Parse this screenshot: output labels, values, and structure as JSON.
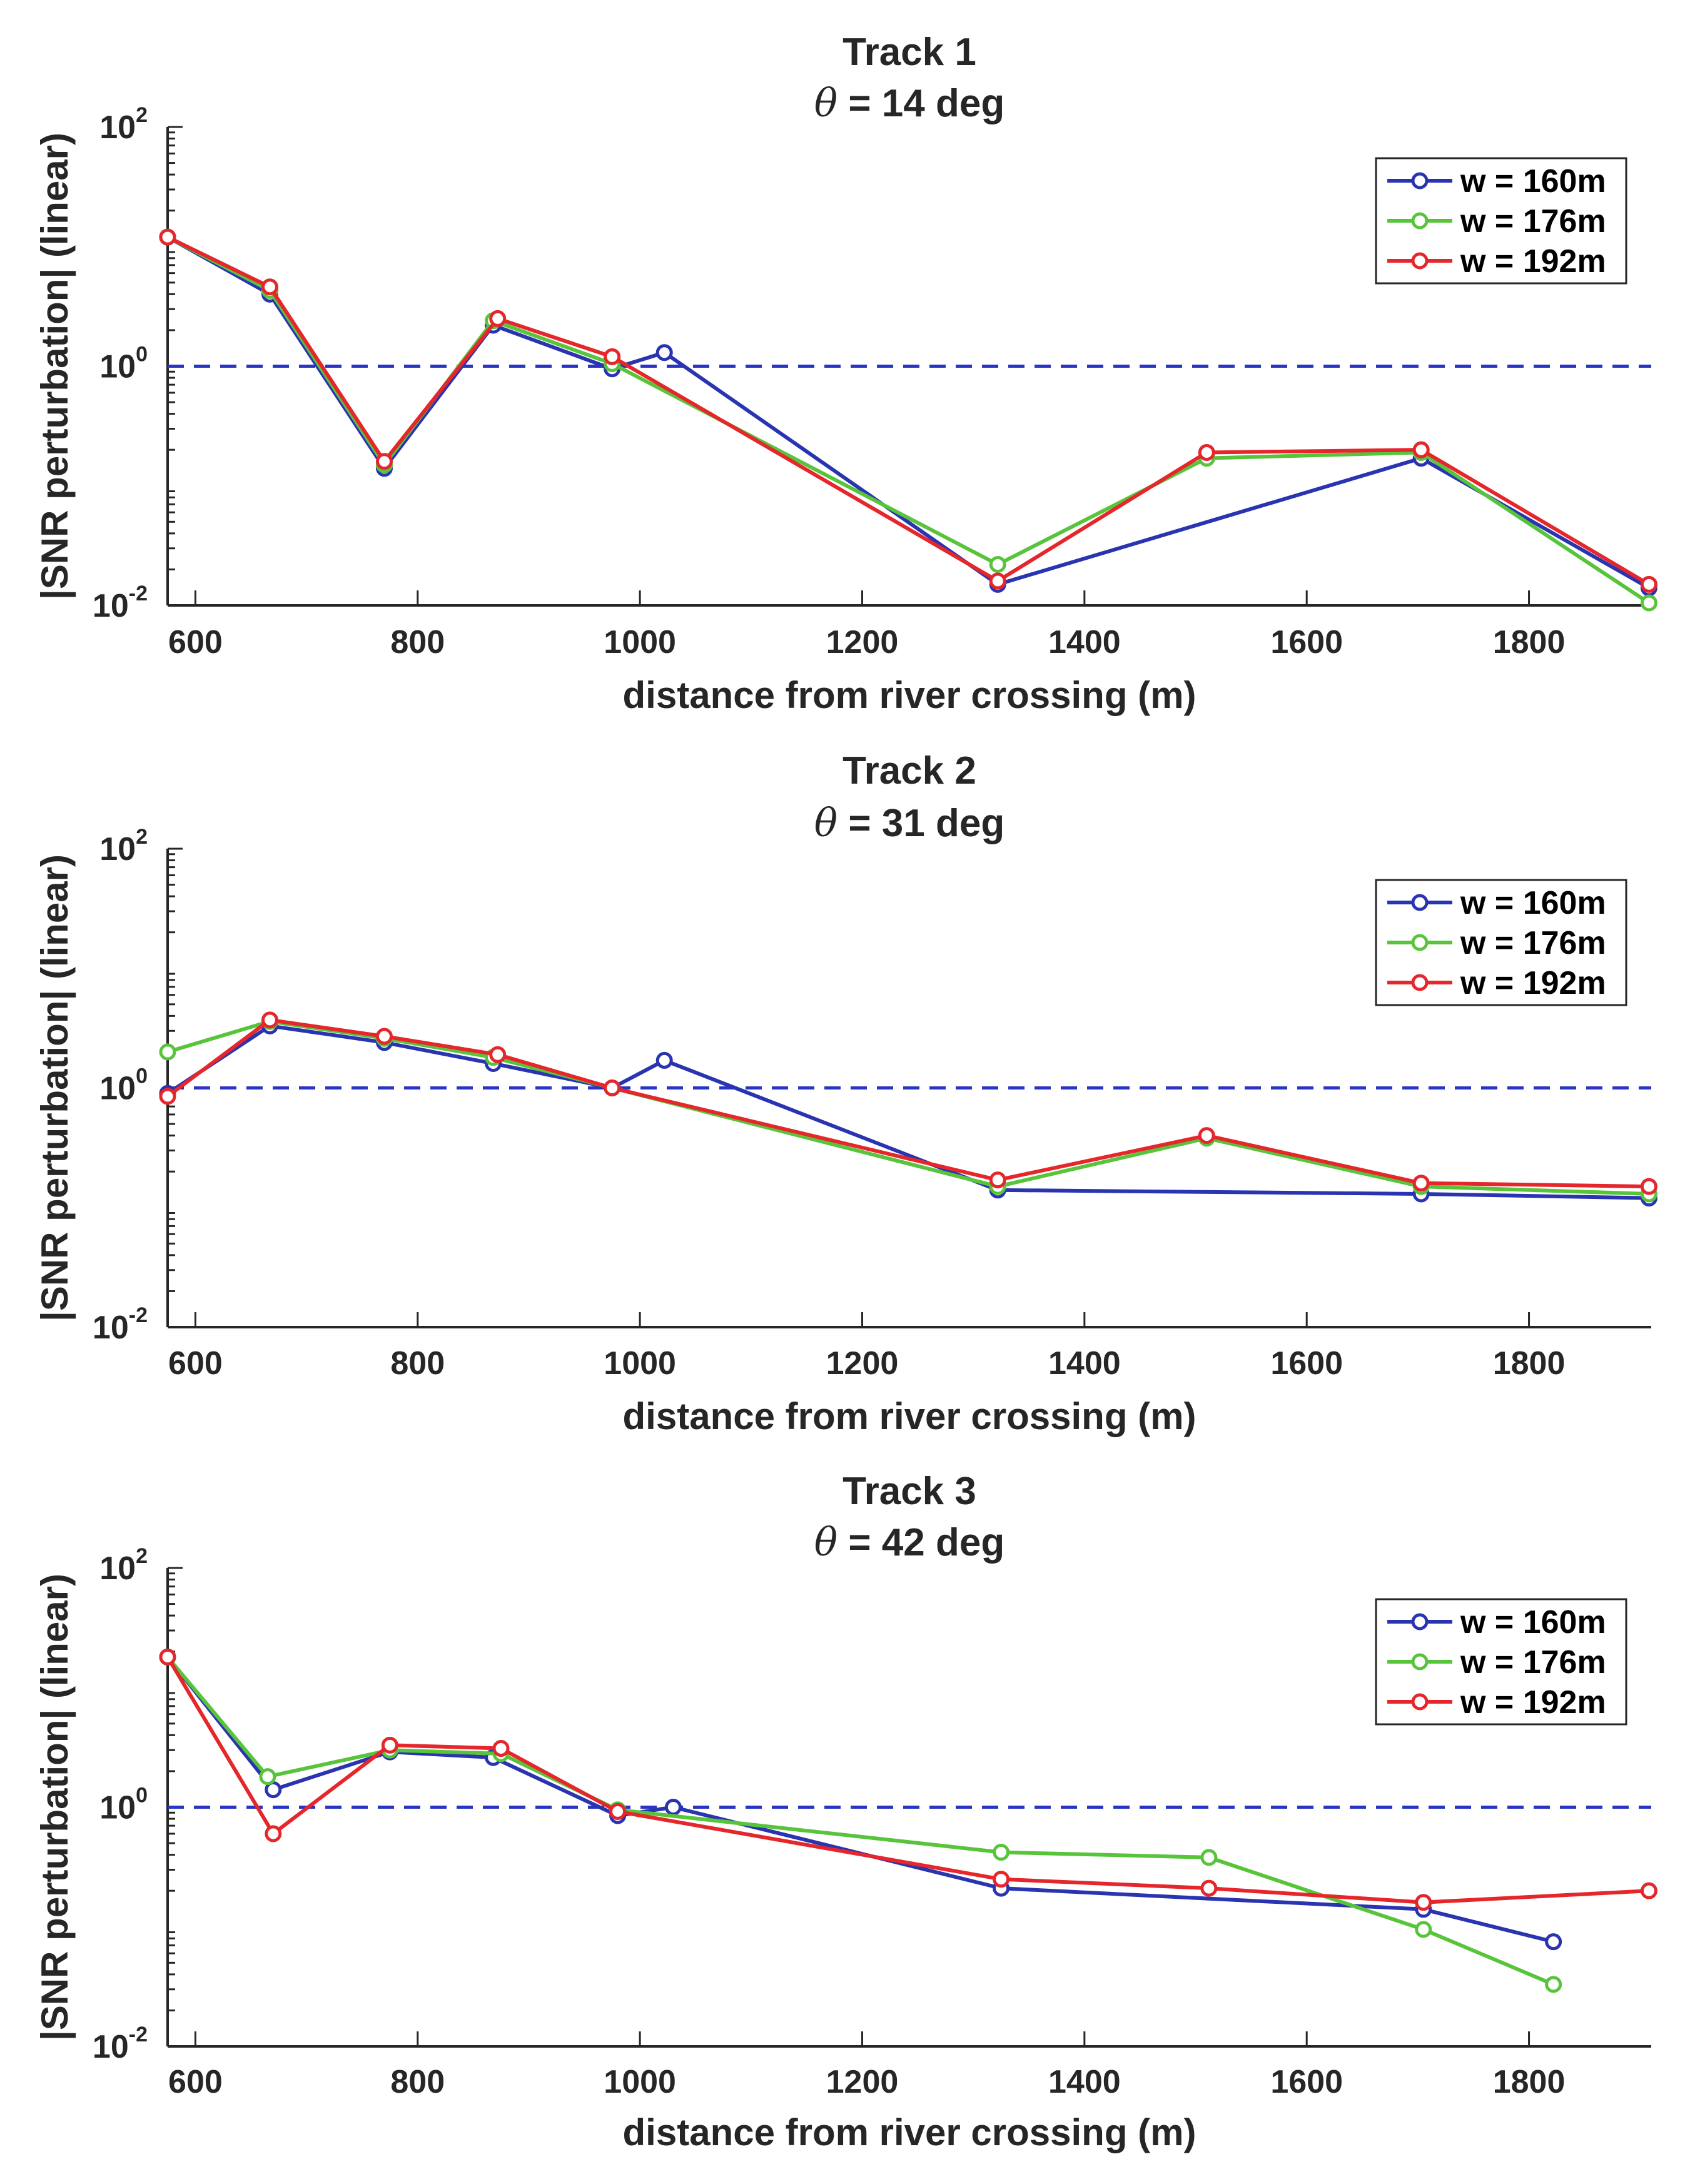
{
  "chart_data": [
    {
      "type": "line",
      "title": "Track 1",
      "subtitle_symbol": "θ",
      "subtitle_rest": " = 14 deg",
      "xlabel": "distance from river crossing (m)",
      "ylabel": "|SNR perturbation| (linear)",
      "xlim": [
        575,
        1910
      ],
      "xticks": [
        600,
        800,
        1000,
        1200,
        1400,
        1600,
        1800
      ],
      "xtick_labels": [
        "600",
        "800",
        "1000",
        "1200",
        "1400",
        "1600",
        "1800"
      ],
      "yscale": "log",
      "ylim": [
        0.01,
        100
      ],
      "yticks": [
        {
          "value": 100,
          "base": "10",
          "exp": "2"
        },
        {
          "value": 1,
          "base": "10",
          "exp": "0"
        },
        {
          "value": 0.01,
          "base": "10",
          "exp": "-2"
        }
      ],
      "reference_line": {
        "y": 1,
        "style": "dashed",
        "color": "#2a34c4"
      },
      "legend_position": "top-right",
      "series": [
        {
          "name": "w = 160m",
          "color": "#2a34b0",
          "marker": "open-circle",
          "x": [
            575,
            667,
            770,
            868,
            975,
            1022,
            1322,
            1703,
            1908
          ],
          "y": [
            12,
            4.0,
            0.14,
            2.2,
            0.95,
            1.3,
            0.015,
            0.17,
            0.014
          ]
        },
        {
          "name": "w = 176m",
          "color": "#58c43c",
          "marker": "open-circle",
          "x": [
            575,
            667,
            770,
            868,
            975,
            1322,
            1510,
            1703,
            1908
          ],
          "y": [
            12,
            4.3,
            0.15,
            2.4,
            1.05,
            0.022,
            0.17,
            0.19,
            0.0105
          ]
        },
        {
          "name": "w = 192m",
          "color": "#e5262a",
          "marker": "open-circle",
          "x": [
            575,
            667,
            770,
            872,
            975,
            1322,
            1510,
            1703,
            1908
          ],
          "y": [
            12,
            4.6,
            0.16,
            2.5,
            1.2,
            0.016,
            0.19,
            0.2,
            0.015
          ]
        }
      ]
    },
    {
      "type": "line",
      "title": "Track 2",
      "subtitle_symbol": "θ",
      "subtitle_rest": " = 31 deg",
      "xlabel": "distance from river crossing (m)",
      "ylabel": "|SNR perturbation| (linear)",
      "xlim": [
        575,
        1910
      ],
      "xticks": [
        600,
        800,
        1000,
        1200,
        1400,
        1600,
        1800
      ],
      "xtick_labels": [
        "600",
        "800",
        "1000",
        "1200",
        "1400",
        "1600",
        "1800"
      ],
      "yscale": "log",
      "ylim": [
        0.01,
        100
      ],
      "yticks": [
        {
          "value": 100,
          "base": "10",
          "exp": "2"
        },
        {
          "value": 1,
          "base": "10",
          "exp": "0"
        },
        {
          "value": 0.01,
          "base": "10",
          "exp": "-2"
        }
      ],
      "reference_line": {
        "y": 1,
        "style": "dashed",
        "color": "#2a34c4"
      },
      "legend_position": "top-right",
      "series": [
        {
          "name": "w = 160m",
          "color": "#2a34b0",
          "marker": "open-circle",
          "x": [
            575,
            667,
            770,
            868,
            975,
            1022,
            1322,
            1703,
            1908
          ],
          "y": [
            0.9,
            3.3,
            2.4,
            1.6,
            1.0,
            1.7,
            0.14,
            0.13,
            0.12
          ]
        },
        {
          "name": "w = 176m",
          "color": "#58c43c",
          "marker": "open-circle",
          "x": [
            575,
            667,
            770,
            868,
            975,
            1322,
            1510,
            1703,
            1908
          ],
          "y": [
            2.0,
            3.6,
            2.6,
            1.8,
            1.0,
            0.15,
            0.38,
            0.15,
            0.13
          ]
        },
        {
          "name": "w = 192m",
          "color": "#e5262a",
          "marker": "open-circle",
          "x": [
            575,
            667,
            770,
            872,
            975,
            1322,
            1510,
            1703,
            1908
          ],
          "y": [
            0.85,
            3.7,
            2.7,
            1.9,
            1.0,
            0.17,
            0.4,
            0.16,
            0.15
          ]
        }
      ]
    },
    {
      "type": "line",
      "title": "Track 3",
      "subtitle_symbol": "θ",
      "subtitle_rest": " = 42 deg",
      "xlabel": "distance from river crossing (m)",
      "ylabel": "|SNR perturbation| (linear)",
      "xlim": [
        575,
        1910
      ],
      "xticks": [
        600,
        800,
        1000,
        1200,
        1400,
        1600,
        1800
      ],
      "xtick_labels": [
        "600",
        "800",
        "1000",
        "1200",
        "1400",
        "1600",
        "1800"
      ],
      "yscale": "log",
      "ylim": [
        0.01,
        100
      ],
      "yticks": [
        {
          "value": 100,
          "base": "10",
          "exp": "2"
        },
        {
          "value": 1,
          "base": "10",
          "exp": "0"
        },
        {
          "value": 0.01,
          "base": "10",
          "exp": "-2"
        }
      ],
      "reference_line": {
        "y": 1,
        "style": "dashed",
        "color": "#2a34c4"
      },
      "legend_position": "top-right",
      "series": [
        {
          "name": "w = 160m",
          "color": "#2a34b0",
          "marker": "open-circle",
          "x": [
            575,
            670,
            775,
            868,
            980,
            1030,
            1325,
            1705,
            1822
          ],
          "y": [
            18,
            1.4,
            2.9,
            2.6,
            0.85,
            1.0,
            0.21,
            0.14,
            0.075
          ]
        },
        {
          "name": "w = 176m",
          "color": "#58c43c",
          "marker": "open-circle",
          "x": [
            575,
            665,
            775,
            875,
            980,
            1325,
            1512,
            1705,
            1822
          ],
          "y": [
            18,
            1.8,
            3.0,
            2.8,
            0.95,
            0.42,
            0.38,
            0.095,
            0.033
          ]
        },
        {
          "name": "w = 192m",
          "color": "#e5262a",
          "marker": "open-circle",
          "x": [
            575,
            670,
            775,
            875,
            980,
            1325,
            1512,
            1705,
            1908
          ],
          "y": [
            18,
            0.6,
            3.3,
            3.1,
            0.92,
            0.25,
            0.21,
            0.16,
            0.2
          ]
        }
      ]
    }
  ]
}
